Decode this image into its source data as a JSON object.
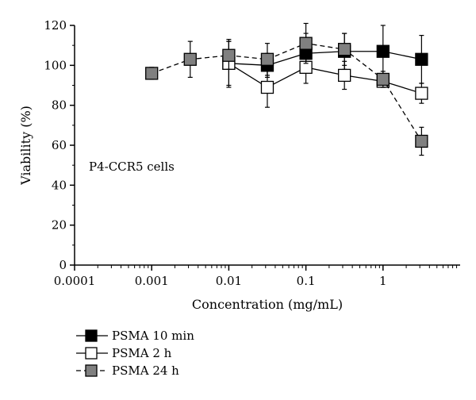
{
  "chart_data": {
    "type": "scatter",
    "xlabel": "Concentration (mg/mL)",
    "ylabel": "Viability (%)",
    "xscale": "log",
    "xlim": [
      0.0001,
      10
    ],
    "ylim": [
      0,
      120
    ],
    "xticks": [
      "0.0001",
      "0.001",
      "0.01",
      "0.1",
      "1"
    ],
    "yticks": [
      "0",
      "20",
      "40",
      "60",
      "80",
      "100",
      "120"
    ],
    "annotation": "P4-CCR5 cells",
    "grid": false,
    "legend_position": "bottom-left",
    "series": [
      {
        "name": "PSMA 10 min",
        "marker_fill": "#000000",
        "line_style": "solid",
        "x": [
          0.01,
          0.0316,
          0.1,
          0.316,
          1,
          3.16
        ],
        "y": [
          101,
          100,
          106,
          107,
          107,
          103
        ],
        "err": [
          11,
          6,
          10,
          9,
          13,
          12
        ]
      },
      {
        "name": "PSMA 2 h",
        "marker_fill": "#ffffff",
        "line_style": "solid",
        "x": [
          0.01,
          0.0316,
          0.1,
          0.316,
          1,
          3.16
        ],
        "y": [
          101,
          89,
          99,
          95,
          92,
          86
        ],
        "err": [
          12,
          10,
          8,
          7,
          3,
          5
        ]
      },
      {
        "name": "PSMA 24 h",
        "marker_fill": "#808080",
        "line_style": "dashed",
        "x": [
          0.001,
          0.00316,
          0.01,
          0.0316,
          0.1,
          0.316,
          1,
          3.16
        ],
        "y": [
          96,
          103,
          105,
          103,
          111,
          108,
          93,
          62
        ],
        "err": [
          3,
          9,
          7,
          8,
          10,
          8,
          4,
          7
        ]
      }
    ]
  }
}
